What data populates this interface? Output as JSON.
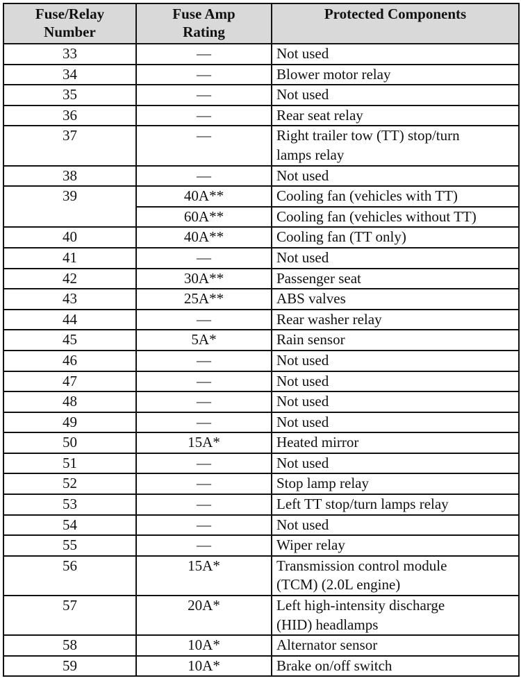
{
  "headers": {
    "number": [
      "Fuse/Relay",
      "Number"
    ],
    "rating": [
      "Fuse Amp",
      "Rating"
    ],
    "components": [
      "Protected Components"
    ]
  },
  "rows": [
    {
      "number": "33",
      "entries": [
        {
          "rating": "—",
          "desc": [
            "Not used"
          ]
        }
      ]
    },
    {
      "number": "34",
      "entries": [
        {
          "rating": "—",
          "desc": [
            "Blower motor relay"
          ]
        }
      ]
    },
    {
      "number": "35",
      "entries": [
        {
          "rating": "—",
          "desc": [
            "Not used"
          ]
        }
      ]
    },
    {
      "number": "36",
      "entries": [
        {
          "rating": "—",
          "desc": [
            "Rear seat relay"
          ]
        }
      ]
    },
    {
      "number": "37",
      "entries": [
        {
          "rating": "—",
          "desc": [
            "Right trailer tow (TT) stop/turn",
            "lamps relay"
          ]
        }
      ]
    },
    {
      "number": "38",
      "entries": [
        {
          "rating": "—",
          "desc": [
            "Not used"
          ]
        }
      ]
    },
    {
      "number": "39",
      "entries": [
        {
          "rating": "40A**",
          "desc": [
            "Cooling fan (vehicles with TT)"
          ]
        },
        {
          "rating": "60A**",
          "desc": [
            "Cooling fan (vehicles without TT)"
          ]
        }
      ]
    },
    {
      "number": "40",
      "entries": [
        {
          "rating": "40A**",
          "desc": [
            "Cooling fan (TT only)"
          ]
        }
      ]
    },
    {
      "number": "41",
      "entries": [
        {
          "rating": "—",
          "desc": [
            "Not used"
          ]
        }
      ]
    },
    {
      "number": "42",
      "entries": [
        {
          "rating": "30A**",
          "desc": [
            "Passenger seat"
          ]
        }
      ]
    },
    {
      "number": "43",
      "entries": [
        {
          "rating": "25A**",
          "desc": [
            "ABS valves"
          ]
        }
      ]
    },
    {
      "number": "44",
      "entries": [
        {
          "rating": "—",
          "desc": [
            "Rear washer relay"
          ]
        }
      ]
    },
    {
      "number": "45",
      "entries": [
        {
          "rating": "5A*",
          "desc": [
            "Rain sensor"
          ]
        }
      ]
    },
    {
      "number": "46",
      "entries": [
        {
          "rating": "—",
          "desc": [
            "Not used"
          ]
        }
      ]
    },
    {
      "number": "47",
      "entries": [
        {
          "rating": "—",
          "desc": [
            "Not used"
          ]
        }
      ]
    },
    {
      "number": "48",
      "entries": [
        {
          "rating": "—",
          "desc": [
            "Not used"
          ]
        }
      ]
    },
    {
      "number": "49",
      "entries": [
        {
          "rating": "—",
          "desc": [
            "Not used"
          ]
        }
      ]
    },
    {
      "number": "50",
      "entries": [
        {
          "rating": "15A*",
          "desc": [
            "Heated mirror"
          ]
        }
      ]
    },
    {
      "number": "51",
      "entries": [
        {
          "rating": "—",
          "desc": [
            "Not used"
          ]
        }
      ]
    },
    {
      "number": "52",
      "entries": [
        {
          "rating": "—",
          "desc": [
            "Stop lamp relay"
          ]
        }
      ]
    },
    {
      "number": "53",
      "entries": [
        {
          "rating": "—",
          "desc": [
            "Left TT stop/turn lamps relay"
          ]
        }
      ]
    },
    {
      "number": "54",
      "entries": [
        {
          "rating": "—",
          "desc": [
            "Not used"
          ]
        }
      ]
    },
    {
      "number": "55",
      "entries": [
        {
          "rating": "—",
          "desc": [
            "Wiper relay"
          ]
        }
      ]
    },
    {
      "number": "56",
      "entries": [
        {
          "rating": "15A*",
          "desc": [
            "Transmission control module",
            "(TCM) (2.0L engine)"
          ]
        }
      ]
    },
    {
      "number": "57",
      "entries": [
        {
          "rating": "20A*",
          "desc": [
            "Left high-intensity discharge",
            "(HID) headlamps"
          ]
        }
      ]
    },
    {
      "number": "58",
      "entries": [
        {
          "rating": "10A*",
          "desc": [
            "Alternator sensor"
          ]
        }
      ]
    },
    {
      "number": "59",
      "entries": [
        {
          "rating": "10A*",
          "desc": [
            "Brake on/off switch"
          ]
        }
      ]
    }
  ]
}
